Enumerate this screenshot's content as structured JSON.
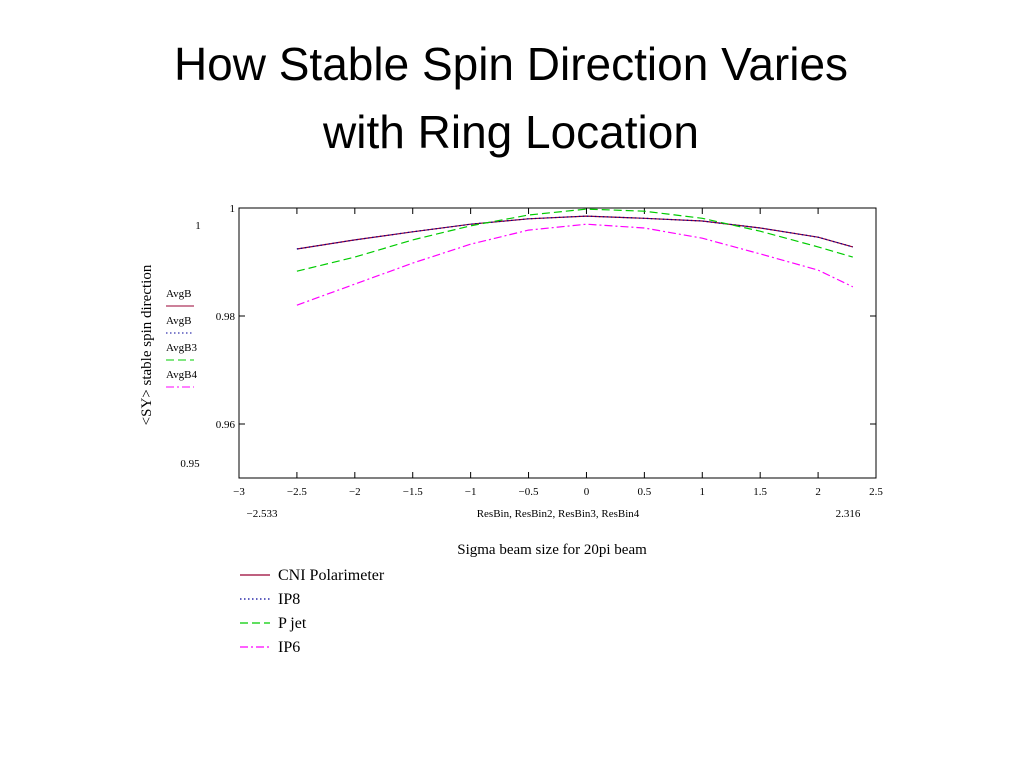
{
  "slide_title": [
    "How Stable Spin Direction Varies",
    "with Ring Location"
  ],
  "chart_data": {
    "type": "line",
    "xlabel": "Sigma beam size for 20pi beam",
    "ylabel": "<SY> stable spin direction",
    "x_trace_label": "ResBin, ResBin2, ResBin3, ResBin4",
    "x": [
      -2.5,
      -2,
      -1.5,
      -1,
      -0.5,
      0,
      0.5,
      1,
      1.5,
      2,
      2.3
    ],
    "xlim": [
      -3,
      2.5
    ],
    "xticks": [
      {
        "value": -3,
        "label": "−3"
      },
      {
        "value": -2.5,
        "label": "−2.5"
      },
      {
        "value": -2,
        "label": "−2"
      },
      {
        "value": -1.5,
        "label": "−1.5"
      },
      {
        "value": -1,
        "label": "−1"
      },
      {
        "value": -0.5,
        "label": "−0.5"
      },
      0,
      0.5,
      1,
      1.5,
      2,
      2.5
    ],
    "xrange_labels": [
      {
        "value": -2.533,
        "label": "−2.533"
      },
      {
        "value": 2.316,
        "label": "2.316"
      }
    ],
    "ylim": [
      0.95,
      1
    ],
    "yticks": [
      0.96,
      0.98,
      1
    ],
    "series": [
      {
        "name": "CNI Polarimeter",
        "trace": "AvgB",
        "color": "#990033",
        "dash": "solid",
        "values": [
          0.9924,
          0.9941,
          0.9956,
          0.997,
          0.998,
          0.9985,
          0.9981,
          0.9976,
          0.9963,
          0.9946,
          0.9928
        ]
      },
      {
        "name": "IP8",
        "trace": "AvgB",
        "color": "#000099",
        "dash": "dotted",
        "values": [
          0.9924,
          0.9941,
          0.9956,
          0.997,
          0.998,
          0.9985,
          0.9981,
          0.9976,
          0.9963,
          0.9946,
          0.9928
        ]
      },
      {
        "name": "P jet",
        "trace": "AvgB3",
        "color": "#00cc00",
        "dash": "dashed",
        "values": [
          0.9883,
          0.9909,
          0.9941,
          0.9967,
          0.9987,
          0.9998,
          0.9994,
          0.9981,
          0.9957,
          0.9928,
          0.9909
        ]
      },
      {
        "name": "IP6",
        "trace": "AvgB4",
        "color": "#ff00ff",
        "dash": "dashdot",
        "values": [
          0.982,
          0.9859,
          0.9898,
          0.9933,
          0.9959,
          0.997,
          0.9963,
          0.9944,
          0.9915,
          0.9885,
          0.9854
        ]
      }
    ]
  }
}
